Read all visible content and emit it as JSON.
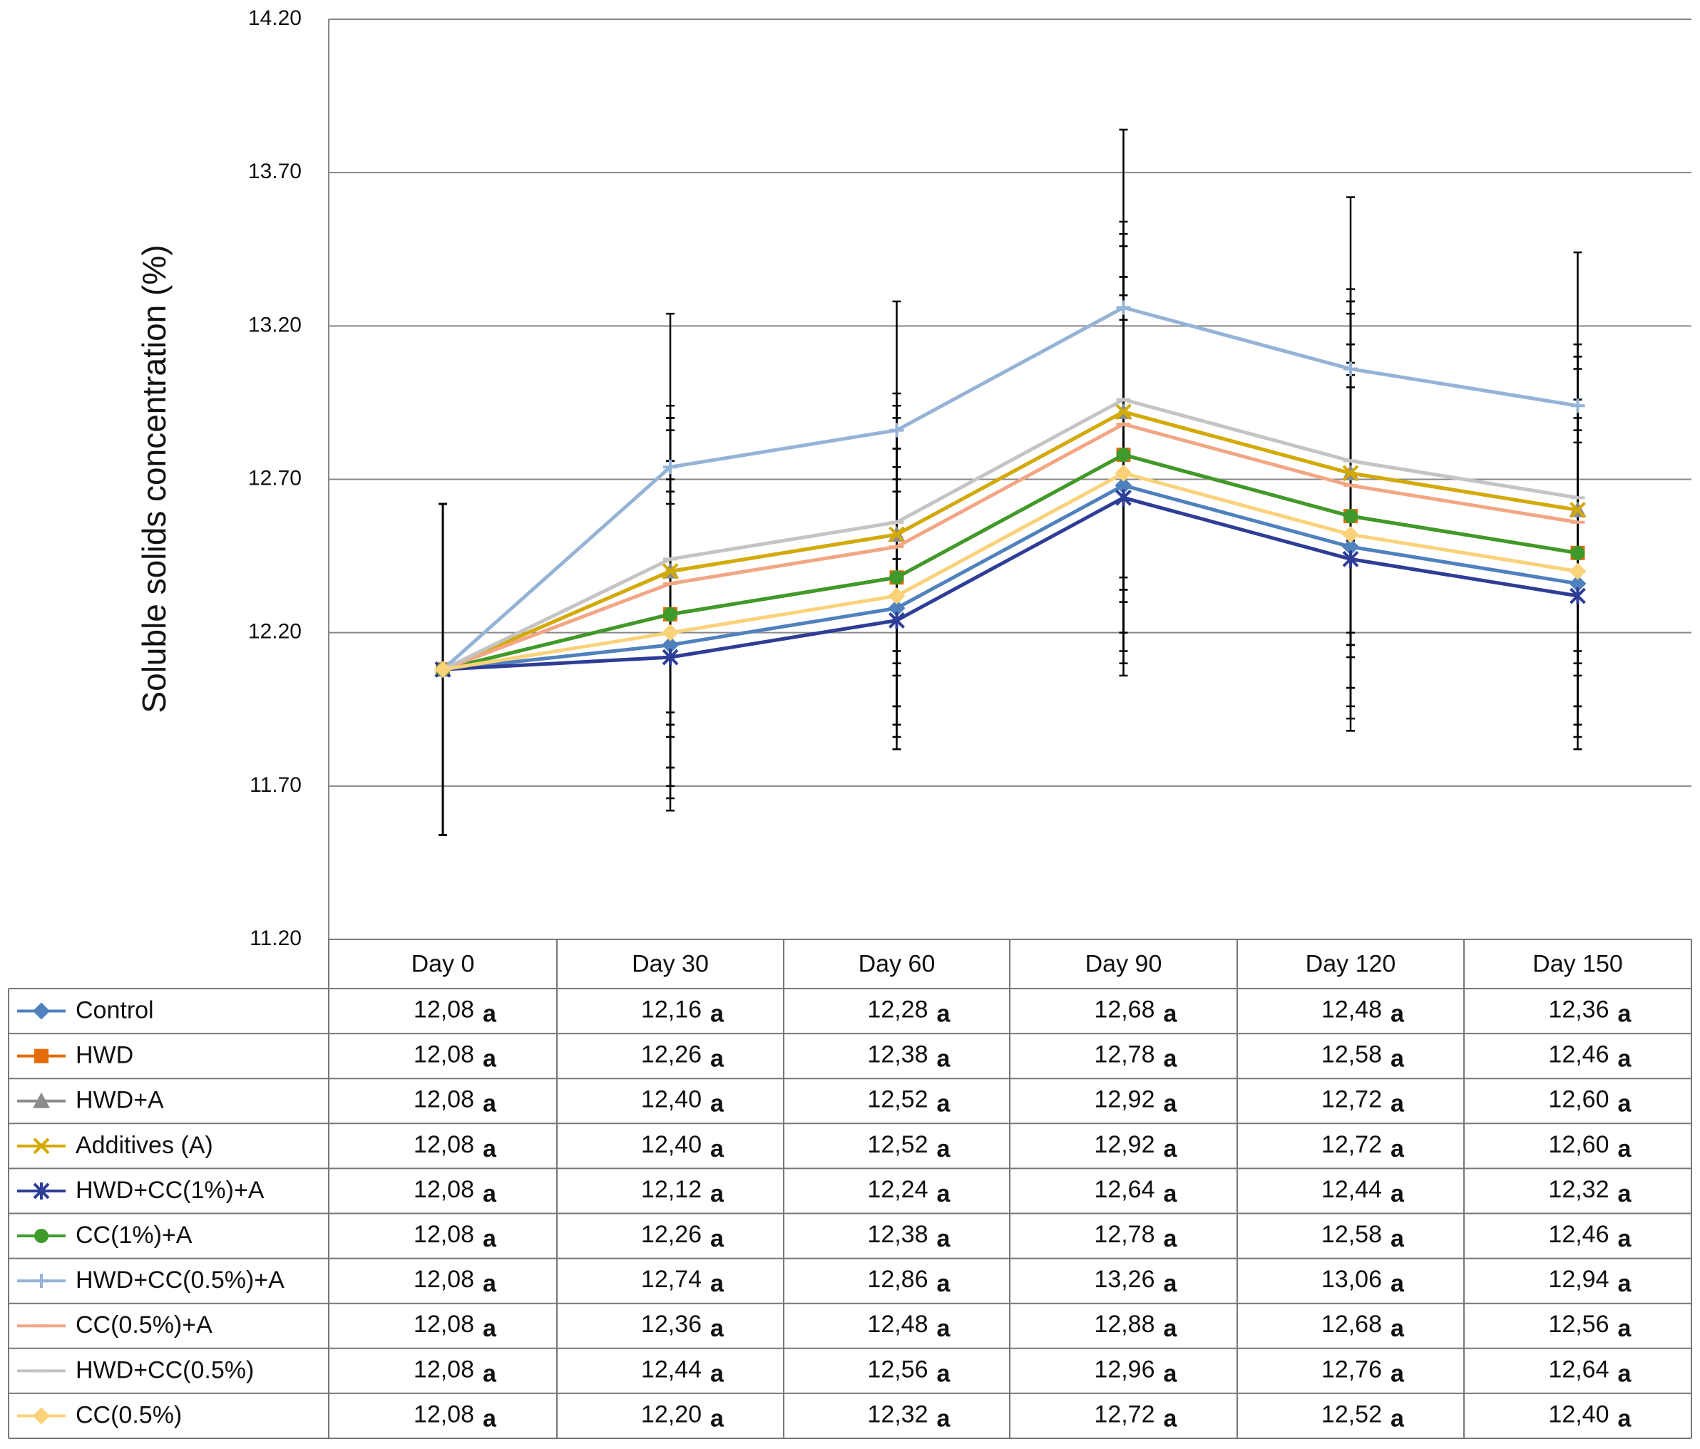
{
  "chart_data": {
    "type": "line",
    "y_label": "Soluble solids concentration (%)",
    "categories": [
      "Day 0",
      "Day 30",
      "Day 60",
      "Day 90",
      "Day 120",
      "Day 150"
    ],
    "ylim": [
      11.2,
      14.2
    ],
    "yticks": [
      {
        "value": 11.2,
        "label": "11.20"
      },
      {
        "value": 11.7,
        "label": "11.70"
      },
      {
        "value": 12.2,
        "label": "12.20"
      },
      {
        "value": 12.7,
        "label": "12.70"
      },
      {
        "value": 13.2,
        "label": "13.20"
      },
      {
        "value": 13.7,
        "label": "13.70"
      },
      {
        "value": 14.2,
        "label": "14.20"
      }
    ],
    "grid": true,
    "series": [
      {
        "name": "Control",
        "color": "#4f81bd",
        "marker": "diamond",
        "values": [
          12.08,
          12.16,
          12.28,
          12.68,
          12.48,
          12.36
        ],
        "value_labels": [
          "12,08",
          "12,16",
          "12,28",
          "12,68",
          "12,48",
          "12,36"
        ],
        "letters": [
          "a",
          "a",
          "a",
          "a",
          "a",
          "a"
        ],
        "errors": [
          0.54,
          0.5,
          0.42,
          0.58,
          0.56,
          0.5
        ]
      },
      {
        "name": "HWD",
        "color": "#e46c0a",
        "marker": "square",
        "values": [
          12.08,
          12.26,
          12.38,
          12.78,
          12.58,
          12.46
        ],
        "value_labels": [
          "12,08",
          "12,26",
          "12,38",
          "12,78",
          "12,58",
          "12,46"
        ],
        "letters": [
          "a",
          "a",
          "a",
          "a",
          "a",
          "a"
        ],
        "errors": [
          0.54,
          0.5,
          0.42,
          0.58,
          0.56,
          0.5
        ]
      },
      {
        "name": "HWD+A",
        "color": "#8c8c8c",
        "marker": "triangle",
        "values": [
          12.08,
          12.4,
          12.52,
          12.92,
          12.72,
          12.6
        ],
        "value_labels": [
          "12,08",
          "12,40",
          "12,52",
          "12,92",
          "12,72",
          "12,60"
        ],
        "letters": [
          "a",
          "a",
          "a",
          "a",
          "a",
          "a"
        ],
        "errors": [
          0.54,
          0.5,
          0.42,
          0.58,
          0.56,
          0.5
        ]
      },
      {
        "name": "Additives (A)",
        "color": "#d4aa00",
        "marker": "x",
        "values": [
          12.08,
          12.4,
          12.52,
          12.92,
          12.72,
          12.6
        ],
        "value_labels": [
          "12,08",
          "12,40",
          "12,52",
          "12,92",
          "12,72",
          "12,60"
        ],
        "letters": [
          "a",
          "a",
          "a",
          "a",
          "a",
          "a"
        ],
        "errors": [
          0.54,
          0.5,
          0.42,
          0.58,
          0.56,
          0.5
        ]
      },
      {
        "name": "HWD+CC(1%)+A",
        "color": "#2e3d96",
        "marker": "star",
        "values": [
          12.08,
          12.12,
          12.24,
          12.64,
          12.44,
          12.32
        ],
        "value_labels": [
          "12,08",
          "12,12",
          "12,24",
          "12,64",
          "12,44",
          "12,32"
        ],
        "letters": [
          "a",
          "a",
          "a",
          "a",
          "a",
          "a"
        ],
        "errors": [
          0.54,
          0.5,
          0.42,
          0.58,
          0.56,
          0.5
        ]
      },
      {
        "name": "CC(1%)+A",
        "color": "#3e9a2a",
        "marker": "circle",
        "values": [
          12.08,
          12.26,
          12.38,
          12.78,
          12.58,
          12.46
        ],
        "value_labels": [
          "12,08",
          "12,26",
          "12,38",
          "12,78",
          "12,58",
          "12,46"
        ],
        "letters": [
          "a",
          "a",
          "a",
          "a",
          "a",
          "a"
        ],
        "errors": [
          0.54,
          0.5,
          0.42,
          0.58,
          0.56,
          0.5
        ]
      },
      {
        "name": "HWD+CC(0.5%)+A",
        "color": "#95b3d7",
        "marker": "plus",
        "values": [
          12.08,
          12.74,
          12.86,
          13.26,
          13.06,
          12.94
        ],
        "value_labels": [
          "12,08",
          "12,74",
          "12,86",
          "13,26",
          "13,06",
          "12,94"
        ],
        "letters": [
          "a",
          "a",
          "a",
          "a",
          "a",
          "a"
        ],
        "errors": [
          0.54,
          0.5,
          0.42,
          0.58,
          0.56,
          0.5
        ]
      },
      {
        "name": "CC(0.5%)+A",
        "color": "#f2a684",
        "marker": "dash",
        "values": [
          12.08,
          12.36,
          12.48,
          12.88,
          12.68,
          12.56
        ],
        "value_labels": [
          "12,08",
          "12,36",
          "12,48",
          "12,88",
          "12,68",
          "12,56"
        ],
        "letters": [
          "a",
          "a",
          "a",
          "a",
          "a",
          "a"
        ],
        "errors": [
          0.54,
          0.5,
          0.42,
          0.58,
          0.56,
          0.5
        ]
      },
      {
        "name": "HWD+CC(0.5%)",
        "color": "#c4c4c4",
        "marker": "dash",
        "values": [
          12.08,
          12.44,
          12.56,
          12.96,
          12.76,
          12.64
        ],
        "value_labels": [
          "12,08",
          "12,44",
          "12,56",
          "12,96",
          "12,76",
          "12,64"
        ],
        "letters": [
          "a",
          "a",
          "a",
          "a",
          "a",
          "a"
        ],
        "errors": [
          0.54,
          0.5,
          0.42,
          0.58,
          0.56,
          0.5
        ]
      },
      {
        "name": "CC(0.5%)",
        "color": "#f9d27a",
        "marker": "diamond",
        "values": [
          12.08,
          12.2,
          12.32,
          12.72,
          12.52,
          12.4
        ],
        "value_labels": [
          "12,08",
          "12,20",
          "12,32",
          "12,72",
          "12,52",
          "12,40"
        ],
        "letters": [
          "a",
          "a",
          "a",
          "a",
          "a",
          "a"
        ],
        "errors": [
          0.54,
          0.5,
          0.42,
          0.58,
          0.56,
          0.5
        ]
      }
    ]
  }
}
